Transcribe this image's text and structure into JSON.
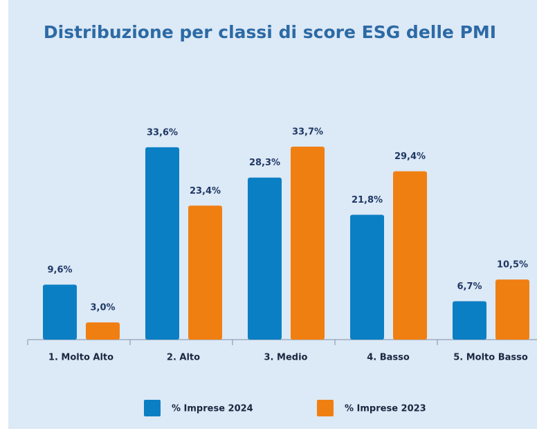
{
  "chart_data": {
    "type": "bar",
    "title": "Distribuzione per classi di score ESG delle PMI",
    "categories": [
      "1. Molto Alto",
      "2. Alto",
      "3. Medio",
      "4. Basso",
      "5. Molto Basso"
    ],
    "series": [
      {
        "name": "% Imprese 2024",
        "color": "#0b7fc4",
        "values": [
          9.6,
          33.6,
          28.3,
          21.8,
          6.7
        ],
        "value_labels": [
          "9,6%",
          "33,6%",
          "28,3%",
          "21,8%",
          "6,7%"
        ]
      },
      {
        "name": "% Imprese 2023",
        "color": "#f07f12",
        "values": [
          3.0,
          23.4,
          33.7,
          29.4,
          10.5
        ],
        "value_labels": [
          "3,0%",
          "23,4%",
          "33,7%",
          "29,4%",
          "10,5%"
        ]
      }
    ]
  }
}
